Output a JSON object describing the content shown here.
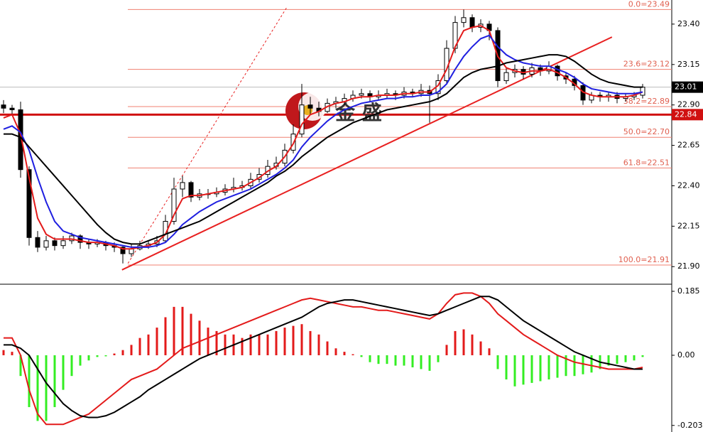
{
  "chart_data": {
    "type": "candlestick",
    "candles": [
      [
        22.9,
        22.93,
        22.85,
        22.88
      ],
      [
        22.88,
        22.9,
        22.84,
        22.87
      ],
      [
        22.87,
        22.92,
        22.45,
        22.5
      ],
      [
        22.5,
        22.52,
        22.03,
        22.08
      ],
      [
        22.08,
        22.12,
        21.99,
        22.02
      ],
      [
        22.02,
        22.09,
        22.0,
        22.06
      ],
      [
        22.06,
        22.08,
        22.0,
        22.03
      ],
      [
        22.03,
        22.09,
        22.01,
        22.06
      ],
      [
        22.06,
        22.11,
        22.04,
        22.09
      ],
      [
        22.09,
        22.1,
        22.01,
        22.05
      ],
      [
        22.05,
        22.07,
        22.01,
        22.04
      ],
      [
        22.04,
        22.07,
        22.02,
        22.05
      ],
      [
        22.05,
        22.06,
        22.0,
        22.03
      ],
      [
        22.03,
        22.05,
        21.99,
        22.02
      ],
      [
        22.02,
        22.03,
        21.92,
        21.98
      ],
      [
        21.98,
        22.04,
        21.96,
        22.01
      ],
      [
        22.01,
        22.06,
        22.0,
        22.03
      ],
      [
        22.03,
        22.06,
        22.01,
        22.04
      ],
      [
        22.04,
        22.09,
        22.02,
        22.06
      ],
      [
        22.06,
        22.22,
        22.05,
        22.18
      ],
      [
        22.18,
        22.45,
        22.16,
        22.38
      ],
      [
        22.38,
        22.46,
        22.33,
        22.42
      ],
      [
        22.42,
        22.43,
        22.3,
        22.33
      ],
      [
        22.33,
        22.38,
        22.31,
        22.35
      ],
      [
        22.35,
        22.38,
        22.32,
        22.35
      ],
      [
        22.35,
        22.39,
        22.33,
        22.36
      ],
      [
        22.36,
        22.41,
        22.34,
        22.38
      ],
      [
        22.38,
        22.45,
        22.36,
        22.39
      ],
      [
        22.39,
        22.43,
        22.37,
        22.4
      ],
      [
        22.4,
        22.48,
        22.38,
        22.44
      ],
      [
        22.44,
        22.51,
        22.42,
        22.47
      ],
      [
        22.47,
        22.56,
        22.45,
        22.52
      ],
      [
        22.52,
        22.58,
        22.5,
        22.54
      ],
      [
        22.54,
        22.66,
        22.52,
        22.62
      ],
      [
        22.62,
        22.78,
        22.6,
        22.72
      ],
      [
        22.72,
        23.03,
        22.7,
        22.9
      ],
      [
        22.9,
        22.95,
        22.84,
        22.88
      ],
      [
        22.88,
        22.92,
        22.83,
        22.86
      ],
      [
        22.86,
        22.94,
        22.85,
        22.91
      ],
      [
        22.91,
        22.95,
        22.88,
        22.92
      ],
      [
        22.92,
        22.97,
        22.9,
        22.94
      ],
      [
        22.94,
        22.99,
        22.92,
        22.96
      ],
      [
        22.96,
        23.0,
        22.94,
        22.97
      ],
      [
        22.97,
        22.99,
        22.92,
        22.95
      ],
      [
        22.95,
        22.99,
        22.93,
        22.96
      ],
      [
        22.96,
        23.0,
        22.94,
        22.97
      ],
      [
        22.97,
        22.99,
        22.93,
        22.96
      ],
      [
        22.96,
        23.01,
        22.94,
        22.98
      ],
      [
        22.98,
        23.0,
        22.95,
        22.97
      ],
      [
        22.97,
        23.03,
        22.95,
        22.99
      ],
      [
        22.99,
        23.02,
        22.79,
        22.97
      ],
      [
        22.97,
        23.09,
        22.93,
        23.05
      ],
      [
        23.05,
        23.3,
        23.03,
        23.25
      ],
      [
        23.25,
        23.45,
        23.22,
        23.41
      ],
      [
        23.41,
        23.49,
        23.38,
        23.44
      ],
      [
        23.44,
        23.46,
        23.35,
        23.38
      ],
      [
        23.38,
        23.43,
        23.35,
        23.4
      ],
      [
        23.4,
        23.42,
        23.3,
        23.36
      ],
      [
        23.36,
        23.38,
        23.01,
        23.05
      ],
      [
        23.05,
        23.13,
        23.03,
        23.1
      ],
      [
        23.1,
        23.15,
        23.07,
        23.12
      ],
      [
        23.12,
        23.14,
        23.06,
        23.09
      ],
      [
        23.09,
        23.16,
        23.07,
        23.13
      ],
      [
        23.13,
        23.15,
        23.08,
        23.11
      ],
      [
        23.11,
        23.17,
        23.09,
        23.14
      ],
      [
        23.14,
        23.15,
        23.05,
        23.08
      ],
      [
        23.08,
        23.1,
        23.03,
        23.06
      ],
      [
        23.06,
        23.08,
        22.99,
        23.02
      ],
      [
        23.02,
        23.04,
        22.9,
        22.93
      ],
      [
        22.93,
        22.98,
        22.91,
        22.96
      ],
      [
        22.96,
        22.98,
        22.92,
        22.95
      ],
      [
        22.95,
        22.98,
        22.92,
        22.96
      ],
      [
        22.96,
        22.98,
        22.91,
        22.94
      ],
      [
        22.94,
        22.97,
        22.92,
        22.95
      ],
      [
        22.95,
        22.98,
        22.93,
        22.96
      ],
      [
        22.96,
        23.03,
        22.94,
        23.01
      ]
    ],
    "series": [
      {
        "color": "#e31a1a",
        "values": [
          22.82,
          22.84,
          22.72,
          22.45,
          22.2,
          22.1,
          22.07,
          22.07,
          22.07,
          22.06,
          22.05,
          22.05,
          22.04,
          22.03,
          22.01,
          22.01,
          22.02,
          22.03,
          22.05,
          22.1,
          22.22,
          22.32,
          22.34,
          22.34,
          22.35,
          22.36,
          22.37,
          22.38,
          22.39,
          22.42,
          22.45,
          22.49,
          22.52,
          22.58,
          22.66,
          22.78,
          22.84,
          22.86,
          22.89,
          22.91,
          22.92,
          22.94,
          22.95,
          22.95,
          22.96,
          22.96,
          22.96,
          22.97,
          22.97,
          22.98,
          22.98,
          23.02,
          23.12,
          23.26,
          23.36,
          23.38,
          23.39,
          23.36,
          23.2,
          23.13,
          23.11,
          23.1,
          23.11,
          23.11,
          23.12,
          23.1,
          23.07,
          23.03,
          22.98,
          22.96,
          22.95,
          22.95,
          22.95,
          22.95,
          22.96,
          22.98
        ]
      },
      {
        "color": "#1f1fe0",
        "values": [
          22.75,
          22.77,
          22.73,
          22.62,
          22.45,
          22.3,
          22.18,
          22.12,
          22.1,
          22.08,
          22.07,
          22.06,
          22.05,
          22.04,
          22.03,
          22.02,
          22.02,
          22.02,
          22.03,
          22.05,
          22.1,
          22.16,
          22.2,
          22.24,
          22.27,
          22.3,
          22.32,
          22.34,
          22.36,
          22.38,
          22.41,
          22.44,
          22.47,
          22.51,
          22.56,
          22.64,
          22.7,
          22.75,
          22.8,
          22.84,
          22.87,
          22.89,
          22.91,
          22.92,
          22.93,
          22.94,
          22.94,
          22.95,
          22.95,
          22.96,
          22.96,
          22.98,
          23.03,
          23.12,
          23.2,
          23.26,
          23.31,
          23.33,
          23.26,
          23.21,
          23.18,
          23.16,
          23.15,
          23.14,
          23.14,
          23.12,
          23.1,
          23.07,
          23.03,
          23.0,
          22.99,
          22.98,
          22.97,
          22.97,
          22.97,
          22.98
        ]
      },
      {
        "color": "#000000",
        "values": [
          22.72,
          22.72,
          22.7,
          22.64,
          22.58,
          22.52,
          22.46,
          22.4,
          22.34,
          22.28,
          22.22,
          22.16,
          22.11,
          22.07,
          22.05,
          22.04,
          22.04,
          22.06,
          22.08,
          22.1,
          22.12,
          22.14,
          22.16,
          22.18,
          22.21,
          22.24,
          22.27,
          22.3,
          22.33,
          22.36,
          22.39,
          22.42,
          22.46,
          22.49,
          22.53,
          22.58,
          22.62,
          22.66,
          22.7,
          22.73,
          22.76,
          22.79,
          22.81,
          22.83,
          22.85,
          22.87,
          22.88,
          22.89,
          22.9,
          22.91,
          22.92,
          22.94,
          22.97,
          23.02,
          23.07,
          23.1,
          23.12,
          23.13,
          23.14,
          23.16,
          23.17,
          23.18,
          23.19,
          23.2,
          23.21,
          23.21,
          23.2,
          23.17,
          23.13,
          23.09,
          23.06,
          23.04,
          23.03,
          23.02,
          23.01,
          23.01
        ]
      }
    ],
    "ylim": [
      21.8,
      23.549
    ],
    "yticks": [
      {
        "value": 21.9,
        "label": "21.90"
      },
      {
        "value": 22.15,
        "label": "22.15"
      },
      {
        "value": 22.4,
        "label": "22.40"
      },
      {
        "value": 22.65,
        "label": "22.65"
      },
      {
        "value": 22.9,
        "label": "22.90"
      },
      {
        "value": 23.15,
        "label": "23.15"
      },
      {
        "value": 23.4,
        "label": "23.40"
      }
    ],
    "fib_levels": [
      {
        "value": 23.49,
        "label": "0.0=23.49"
      },
      {
        "value": 23.12,
        "label": "23.6=23.12"
      },
      {
        "value": 22.89,
        "label": "38.2=22.89"
      },
      {
        "value": 22.7,
        "label": "50.0=22.70"
      },
      {
        "value": 22.51,
        "label": "61.8=22.51"
      },
      {
        "value": 21.91,
        "label": "100.0=21.91"
      }
    ],
    "last_price": {
      "value": 23.01,
      "label": "23.01"
    },
    "alert_price": {
      "value": 22.84,
      "label": "22.84"
    },
    "trendlines": [
      {
        "x": [
          13.9,
          71.4
        ],
        "y": [
          21.88,
          23.32
        ],
        "dashed": false
      },
      {
        "x": [
          14.6,
          33.2
        ],
        "y": [
          21.92,
          23.5
        ],
        "dashed": true
      }
    ],
    "watermark": "金 盛",
    "macd": {
      "histogram": [
        0.015,
        0.01,
        -0.06,
        -0.15,
        -0.19,
        -0.19,
        -0.15,
        -0.1,
        -0.06,
        -0.03,
        -0.015,
        -0.005,
        -0.003,
        0.005,
        0.015,
        0.03,
        0.05,
        0.06,
        0.08,
        0.11,
        0.14,
        0.14,
        0.12,
        0.1,
        0.08,
        0.07,
        0.06,
        0.06,
        0.05,
        0.06,
        0.06,
        0.06,
        0.07,
        0.08,
        0.085,
        0.09,
        0.07,
        0.06,
        0.04,
        0.02,
        0.01,
        0.003,
        -0.005,
        -0.02,
        -0.025,
        -0.025,
        -0.03,
        -0.03,
        -0.035,
        -0.04,
        -0.045,
        -0.02,
        0.03,
        0.07,
        0.075,
        0.06,
        0.04,
        0.02,
        -0.04,
        -0.07,
        -0.09,
        -0.085,
        -0.08,
        -0.075,
        -0.07,
        -0.065,
        -0.06,
        -0.06,
        -0.055,
        -0.05,
        -0.04,
        -0.03,
        -0.025,
        -0.02,
        -0.015,
        -0.005
      ],
      "lines": [
        {
          "color": "#e31a1a",
          "values": [
            0.05,
            0.05,
            0.0,
            -0.1,
            -0.17,
            -0.2,
            -0.2,
            -0.2,
            -0.19,
            -0.18,
            -0.17,
            -0.15,
            -0.13,
            -0.11,
            -0.09,
            -0.07,
            -0.06,
            -0.05,
            -0.04,
            -0.02,
            0.0,
            0.02,
            0.03,
            0.04,
            0.05,
            0.06,
            0.07,
            0.08,
            0.09,
            0.1,
            0.11,
            0.12,
            0.13,
            0.14,
            0.15,
            0.16,
            0.165,
            0.16,
            0.155,
            0.15,
            0.145,
            0.14,
            0.14,
            0.135,
            0.13,
            0.13,
            0.125,
            0.12,
            0.115,
            0.11,
            0.105,
            0.12,
            0.15,
            0.175,
            0.18,
            0.18,
            0.17,
            0.15,
            0.12,
            0.1,
            0.08,
            0.06,
            0.045,
            0.03,
            0.015,
            0.0,
            -0.01,
            -0.02,
            -0.025,
            -0.03,
            -0.035,
            -0.04,
            -0.04,
            -0.04,
            -0.04,
            -0.035
          ]
        },
        {
          "color": "#000000",
          "values": [
            0.03,
            0.03,
            0.02,
            0.0,
            -0.04,
            -0.08,
            -0.11,
            -0.14,
            -0.16,
            -0.175,
            -0.18,
            -0.18,
            -0.175,
            -0.165,
            -0.15,
            -0.135,
            -0.12,
            -0.1,
            -0.085,
            -0.07,
            -0.055,
            -0.04,
            -0.025,
            -0.01,
            0.0,
            0.01,
            0.02,
            0.03,
            0.04,
            0.05,
            0.06,
            0.07,
            0.08,
            0.09,
            0.1,
            0.11,
            0.125,
            0.14,
            0.15,
            0.155,
            0.16,
            0.16,
            0.155,
            0.15,
            0.145,
            0.14,
            0.135,
            0.13,
            0.125,
            0.12,
            0.115,
            0.12,
            0.13,
            0.14,
            0.15,
            0.16,
            0.17,
            0.17,
            0.16,
            0.14,
            0.12,
            0.1,
            0.085,
            0.07,
            0.055,
            0.04,
            0.025,
            0.01,
            0.0,
            -0.01,
            -0.02,
            -0.025,
            -0.03,
            -0.035,
            -0.04,
            -0.04
          ]
        }
      ],
      "ylim": [
        -0.2179,
        0.2014
      ],
      "yticks": [
        0.185,
        {
          "value": 0,
          "label": "0.00"
        },
        -0.203
      ]
    }
  }
}
